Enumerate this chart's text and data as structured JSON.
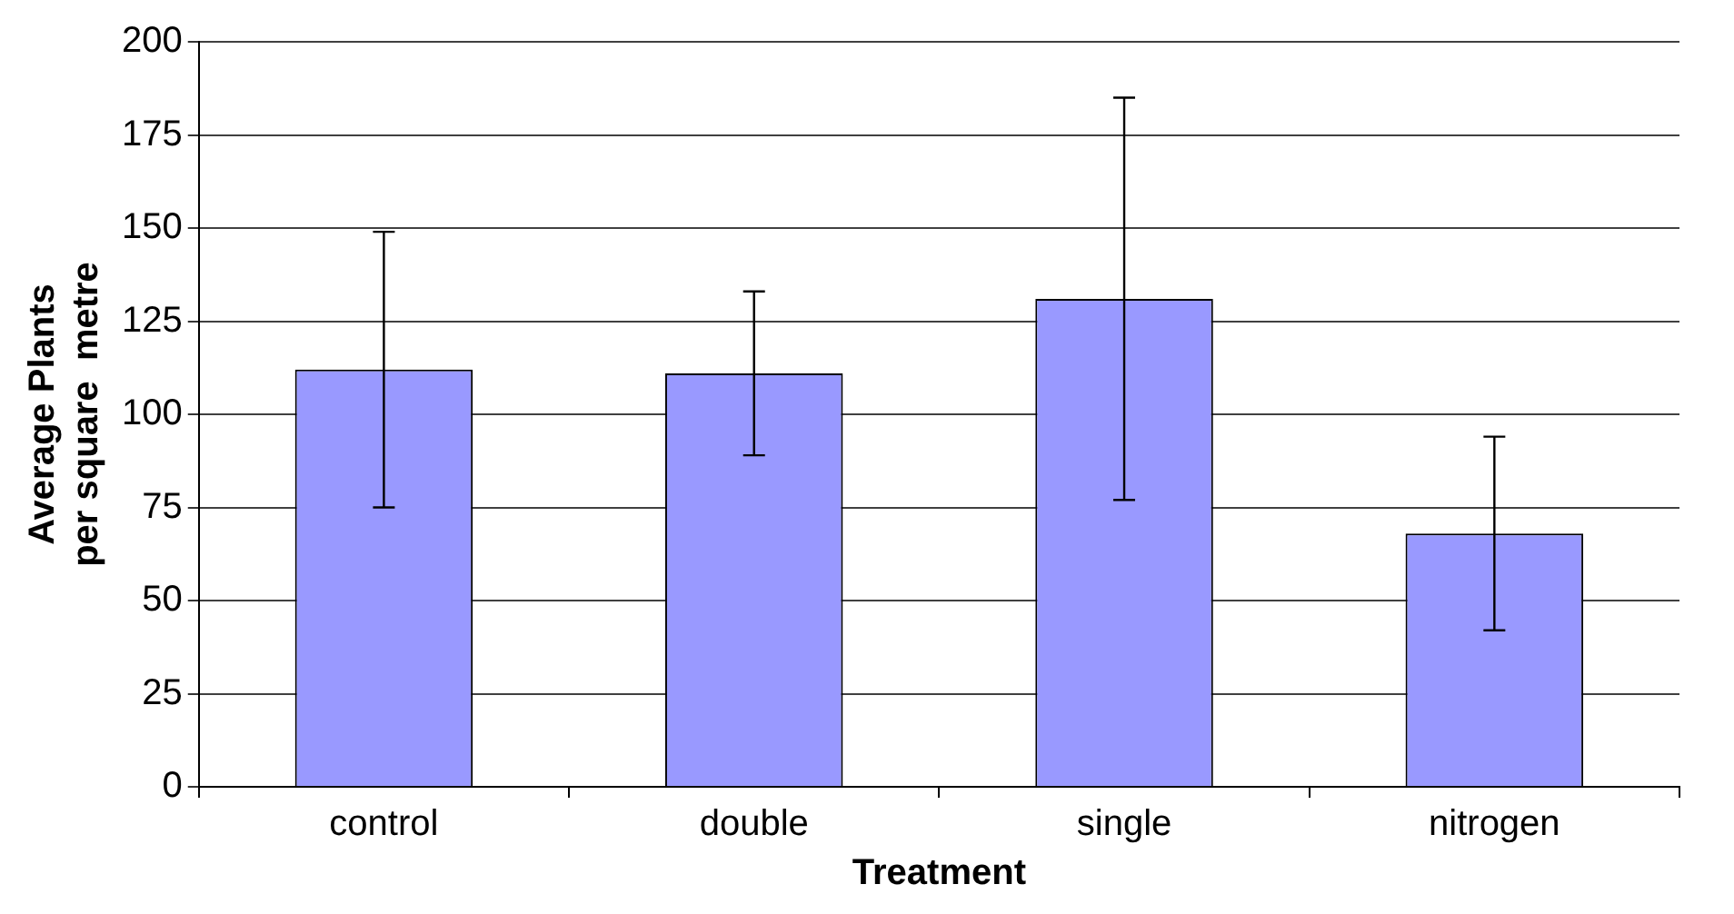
{
  "chart_data": {
    "type": "bar",
    "xlabel": "Treatment",
    "ylabel": "Average Plants\nper square  metre",
    "categories": [
      "control",
      "double",
      "single",
      "nitrogen"
    ],
    "values": [
      112,
      111,
      131,
      68
    ],
    "errors": [
      37,
      22,
      54,
      26
    ],
    "color": "#9999ff",
    "ylim": [
      0,
      200
    ],
    "yticks": [
      0,
      25,
      50,
      75,
      100,
      125,
      150,
      175,
      200
    ],
    "grid": "y"
  }
}
